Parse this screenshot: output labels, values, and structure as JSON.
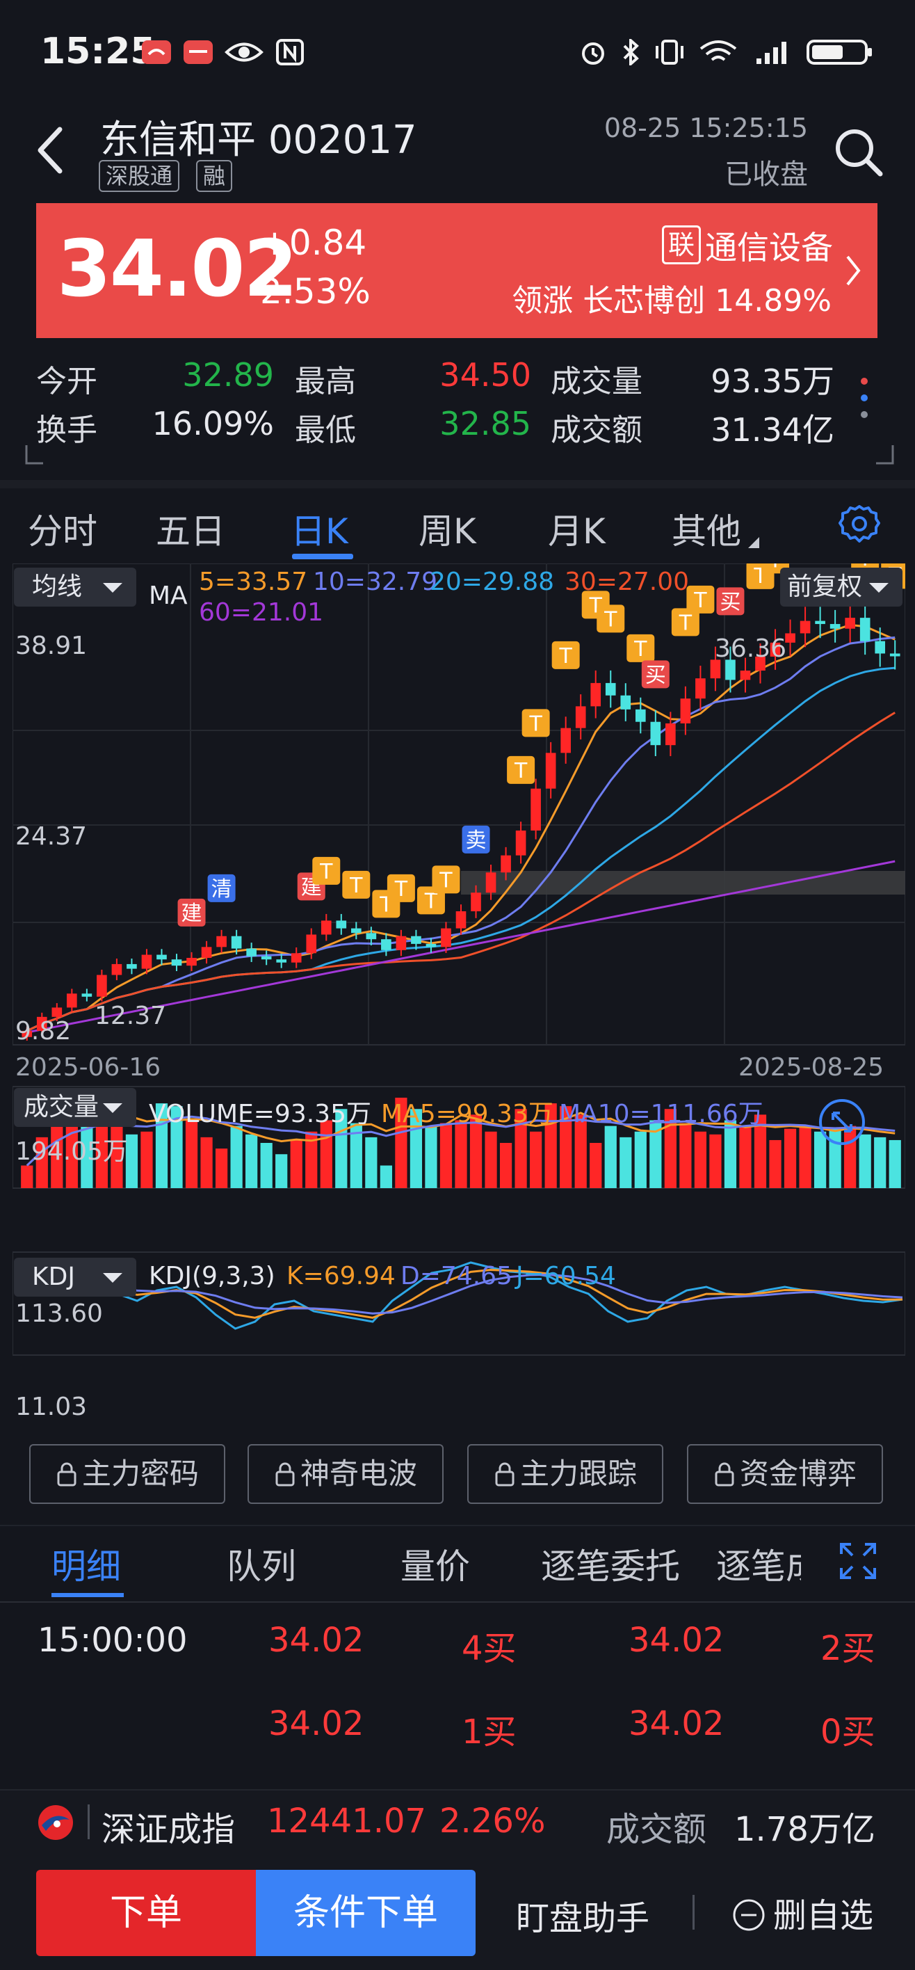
{
  "status_bar": {
    "time": "15:25"
  },
  "header": {
    "title": "东信和平 002017",
    "tags": [
      "深股通",
      "融"
    ],
    "datetime": "08-25 15:25:15",
    "market_status": "已收盘"
  },
  "price": {
    "last": "34.02",
    "change": "+0.84",
    "change_pct": "2.53%",
    "industry_badge": "联",
    "industry": "通信设备",
    "leader": "领涨 长芯博创 14.89%"
  },
  "quote": {
    "open_label": "今开",
    "open": "32.89",
    "high_label": "最高",
    "high": "34.50",
    "volume_label": "成交量",
    "volume": "93.35万",
    "turnover_label": "换手",
    "turnover": "16.09%",
    "low_label": "最低",
    "low": "32.85",
    "amount_label": "成交额",
    "amount": "31.34亿"
  },
  "chart_tabs": [
    "分时",
    "五日",
    "日K",
    "周K",
    "月K",
    "其他"
  ],
  "kline": {
    "indicator_selector": "均线",
    "ma_label": "MA",
    "ma5": "5=33.57",
    "ma10": "10=32.79",
    "ma20": "20=29.88",
    "ma30": "30=27.00",
    "ma60": "60=21.01",
    "adjust_selector": "前复权",
    "y_top": "38.91",
    "y_mid": "24.37",
    "y_bottom": "9.82",
    "low_mark": "12.37",
    "high_mark": "36.36",
    "date_start": "2025-06-16",
    "date_end": "2025-08-25",
    "signal_jian": "建",
    "signal_qing": "清",
    "signal_mai_sell": "卖",
    "signal_mai_buy": "买",
    "signal_t": "T",
    "colors": {
      "up": "#ff2626",
      "down": "#4be3e0",
      "ma5": "#f59b2a",
      "ma10": "#6e7df0",
      "ma20": "#2ea8e6",
      "ma30": "#f0502a",
      "ma60": "#a338d8"
    }
  },
  "volume_panel": {
    "selector": "成交量",
    "volume": "VOLUME=93.35万",
    "ma5": "MA5=99.33万",
    "ma10": "MA10=111.66万",
    "y_top": "194.05万"
  },
  "kdj_panel": {
    "selector": "KDJ",
    "params": "KDJ(9,3,3)",
    "k": "K=69.94",
    "d": "D=74.65",
    "j": "J=60.54",
    "y_top": "113.60",
    "y_bottom": "11.03"
  },
  "locked_features": [
    "主力密码",
    "神奇电波",
    "主力跟踪",
    "资金博弈"
  ],
  "detail_tabs": [
    "明细",
    "队列",
    "量价",
    "逐笔委托",
    "逐笔成"
  ],
  "trades": [
    {
      "time": "15:00:00",
      "p1": "34.02",
      "v1": "4买",
      "p2": "34.02",
      "v2": "2买"
    },
    {
      "time": "",
      "p1": "34.02",
      "v1": "1买",
      "p2": "34.02",
      "v2": "0买"
    }
  ],
  "index_bar": {
    "name": "深证成指",
    "value": "12441.07",
    "change_pct": "2.26%",
    "amount_label": "成交额",
    "amount": "1.78万亿"
  },
  "bottom_bar": {
    "order": "下单",
    "conditional_order": "条件下单",
    "watch_helper": "盯盘助手",
    "remove_watch": "删自选"
  }
}
